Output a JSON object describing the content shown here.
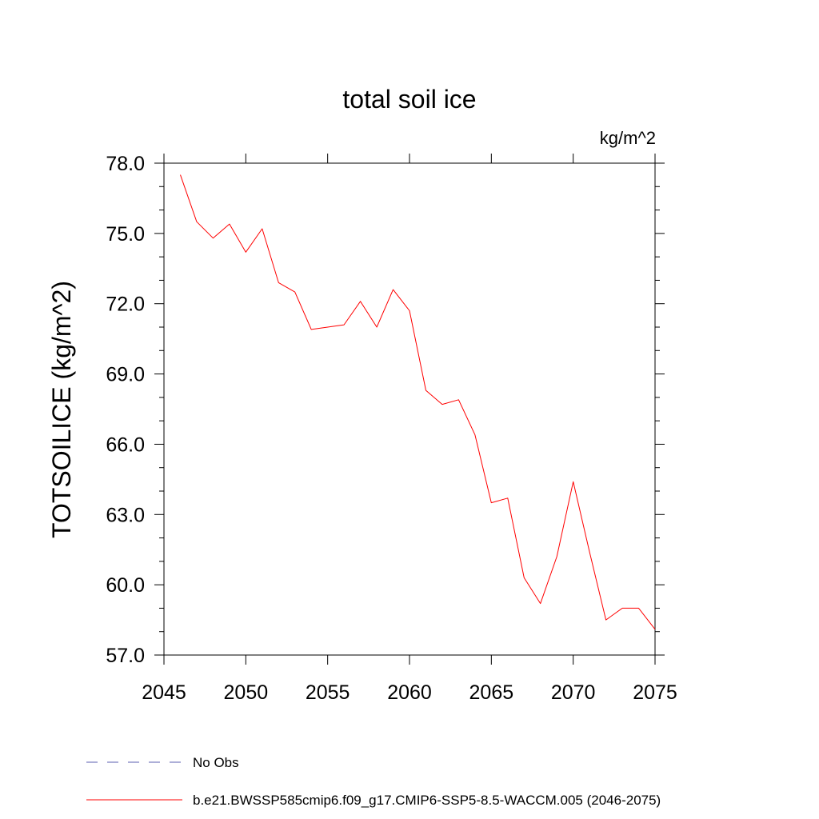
{
  "chart_data": {
    "type": "line",
    "title": "total soil ice",
    "units_label": "kg/m^2",
    "ylabel": "TOTSOILICE  (kg/m^2)",
    "xlabel": "",
    "xlim": [
      2045,
      2075
    ],
    "ylim": [
      57.0,
      78.0
    ],
    "x_ticks": [
      2045,
      2050,
      2055,
      2060,
      2065,
      2070,
      2075
    ],
    "x_tick_labels": [
      "2045",
      "2050",
      "2055",
      "2060",
      "2065",
      "2070",
      "2075"
    ],
    "y_ticks": [
      57.0,
      60.0,
      63.0,
      66.0,
      69.0,
      72.0,
      75.0,
      78.0
    ],
    "y_tick_labels": [
      "57.0",
      "60.0",
      "63.0",
      "66.0",
      "69.0",
      "72.0",
      "75.0",
      "78.0"
    ],
    "grid": false,
    "series": [
      {
        "name": "b.e21.BWSSP585cmip6.f09_g17.CMIP6-SSP5-8.5-WACCM.005 (2046-2075)",
        "color": "#ff0000",
        "x": [
          2046,
          2047,
          2048,
          2049,
          2050,
          2051,
          2052,
          2053,
          2054,
          2055,
          2056,
          2057,
          2058,
          2059,
          2060,
          2061,
          2062,
          2063,
          2064,
          2065,
          2066,
          2067,
          2068,
          2069,
          2070,
          2071,
          2072,
          2073,
          2074,
          2075
        ],
        "y": [
          77.5,
          75.5,
          74.8,
          75.4,
          74.2,
          75.2,
          72.9,
          72.5,
          70.9,
          71.0,
          71.1,
          72.1,
          71.0,
          72.6,
          71.7,
          68.3,
          67.7,
          67.9,
          66.4,
          63.5,
          63.7,
          60.3,
          59.2,
          61.2,
          64.4,
          61.4,
          58.5,
          59.0,
          59.0,
          58.1
        ]
      }
    ],
    "legend": {
      "placement": "bottom-left",
      "entries": [
        {
          "label": "No Obs",
          "color": "#5b5fb0",
          "style": "dashed"
        },
        {
          "label": "b.e21.BWSSP585cmip6.f09_g17.CMIP6-SSP5-8.5-WACCM.005 (2046-2075)",
          "color": "#ff0000",
          "style": "solid"
        }
      ]
    }
  }
}
